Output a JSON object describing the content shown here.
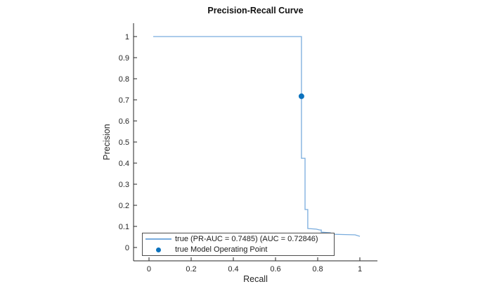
{
  "figure": {
    "title": "Precision-Recall Curve",
    "xlabel": "Recall",
    "ylabel": "Precision"
  },
  "legend": {
    "items": [
      {
        "marker": "line",
        "label": "true (PR-AUC = 0.7485) (AUC = 0.72846)"
      },
      {
        "marker": "dot",
        "label": "true Model Operating Point"
      }
    ],
    "position": "southwest-inside",
    "border_color": "#4d4d4d"
  },
  "colors": {
    "curve_line": "#79ACDD",
    "operating_point": "#0B72BD",
    "axis": "#262626",
    "tick_text": "#262626"
  },
  "chart_data": {
    "type": "line",
    "subtype": "step-precision-recall",
    "title": "Precision-Recall Curve",
    "xlabel": "Recall",
    "ylabel": "Precision",
    "xlim": [
      -0.0733,
      1.0833
    ],
    "ylim": [
      -0.0633,
      1.0633
    ],
    "grid": false,
    "xticks": {
      "values": [
        0,
        0.2,
        0.4,
        0.6,
        0.8,
        1
      ],
      "labels": [
        "0",
        "0.2",
        "0.4",
        "0.6",
        "0.8",
        "1"
      ]
    },
    "yticks": {
      "values": [
        0,
        0.1,
        0.2,
        0.3,
        0.4,
        0.5,
        0.6,
        0.7,
        0.8,
        0.9,
        1
      ],
      "labels": [
        "0",
        "0.1",
        "0.2",
        "0.3",
        "0.4",
        "0.5",
        "0.6",
        "0.7",
        "0.8",
        "0.9",
        "1"
      ]
    },
    "series": [
      {
        "name": "true (PR-AUC = 0.7485) (AUC = 0.72846)",
        "points": [
          [
            0.02,
            1.0
          ],
          [
            0.723,
            1.0
          ],
          [
            0.723,
            0.423
          ],
          [
            0.74,
            0.423
          ],
          [
            0.74,
            0.18
          ],
          [
            0.753,
            0.18
          ],
          [
            0.753,
            0.09
          ],
          [
            0.793,
            0.087
          ],
          [
            0.81,
            0.083
          ],
          [
            0.817,
            0.083
          ],
          [
            0.817,
            0.073
          ],
          [
            0.86,
            0.07
          ],
          [
            0.87,
            0.063
          ],
          [
            0.977,
            0.06
          ],
          [
            1.0,
            0.053
          ]
        ]
      }
    ],
    "operating_point": {
      "name": "true Model Operating Point",
      "x": 0.723,
      "y": 0.717
    }
  }
}
